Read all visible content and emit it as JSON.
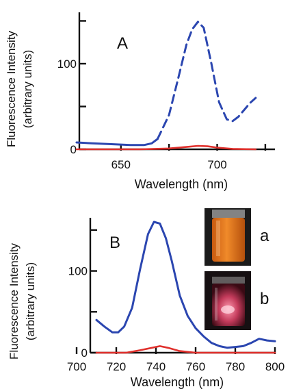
{
  "chart_data": [
    {
      "type": "line",
      "panel": "A",
      "xlabel": "Wavelength (nm)",
      "ylabel": [
        "Fluorescence Intensity",
        "(arbitrary units)"
      ],
      "xlim": [
        627,
        730
      ],
      "ylim": [
        0,
        160
      ],
      "x_ticks": [
        650,
        700
      ],
      "y_ticks": [
        0,
        100
      ],
      "colors": {
        "blue": "#2b46b0",
        "red": "#e0302c"
      },
      "series": [
        {
          "color": "blue",
          "segments": [
            {
              "style": "solid",
              "x": [
                627,
                635,
                645,
                655,
                662,
                666,
                669
              ],
              "y": [
                8,
                7,
                6,
                5,
                5,
                7,
                12
              ]
            },
            {
              "style": "dashed",
              "x": [
                669,
                675,
                680,
                684,
                687,
                690,
                693,
                697,
                701,
                705,
                708,
                711,
                714,
                717,
                720
              ],
              "y": [
                12,
                40,
                85,
                122,
                140,
                149,
                142,
                100,
                55,
                35,
                33,
                38,
                46,
                54,
                60
              ]
            }
          ]
        },
        {
          "color": "red",
          "segments": [
            {
              "style": "solid",
              "x": [
                627,
                660,
                675,
                685,
                690,
                695,
                700,
                708,
                720
              ],
              "y": [
                0,
                0,
                1,
                3,
                4,
                3.5,
                2,
                0.5,
                0
              ]
            }
          ]
        }
      ]
    },
    {
      "type": "line",
      "panel": "B",
      "xlabel": "Wavelength (nm)",
      "ylabel": [
        "Fluorescence Intensity",
        "(arbitrary units)"
      ],
      "xlim": [
        700,
        800
      ],
      "ylim": [
        0,
        165
      ],
      "x_ticks": [
        700,
        720,
        740,
        760,
        780,
        800
      ],
      "y_ticks": [
        0,
        100
      ],
      "colors": {
        "blue": "#2b46b0",
        "red": "#e0302c"
      },
      "series": [
        {
          "color": "blue",
          "x": [
            710,
            714,
            718,
            721,
            724,
            728,
            732,
            736,
            739,
            742,
            745,
            748,
            752,
            756,
            760,
            764,
            768,
            772,
            776,
            780,
            784,
            788,
            792,
            796,
            800
          ],
          "y": [
            40,
            32,
            25,
            25,
            32,
            55,
            102,
            145,
            160,
            158,
            140,
            112,
            70,
            45,
            30,
            20,
            12,
            8,
            6,
            7,
            8,
            12,
            17,
            15,
            14
          ]
        },
        {
          "color": "red",
          "x": [
            710,
            725,
            732,
            738,
            742,
            746,
            752,
            760,
            775,
            800
          ],
          "y": [
            0,
            0,
            3,
            6,
            8,
            6,
            2,
            0,
            0,
            0
          ]
        }
      ],
      "inset_labels": [
        "a",
        "b"
      ]
    }
  ],
  "panel_labels": [
    "A",
    "B"
  ]
}
